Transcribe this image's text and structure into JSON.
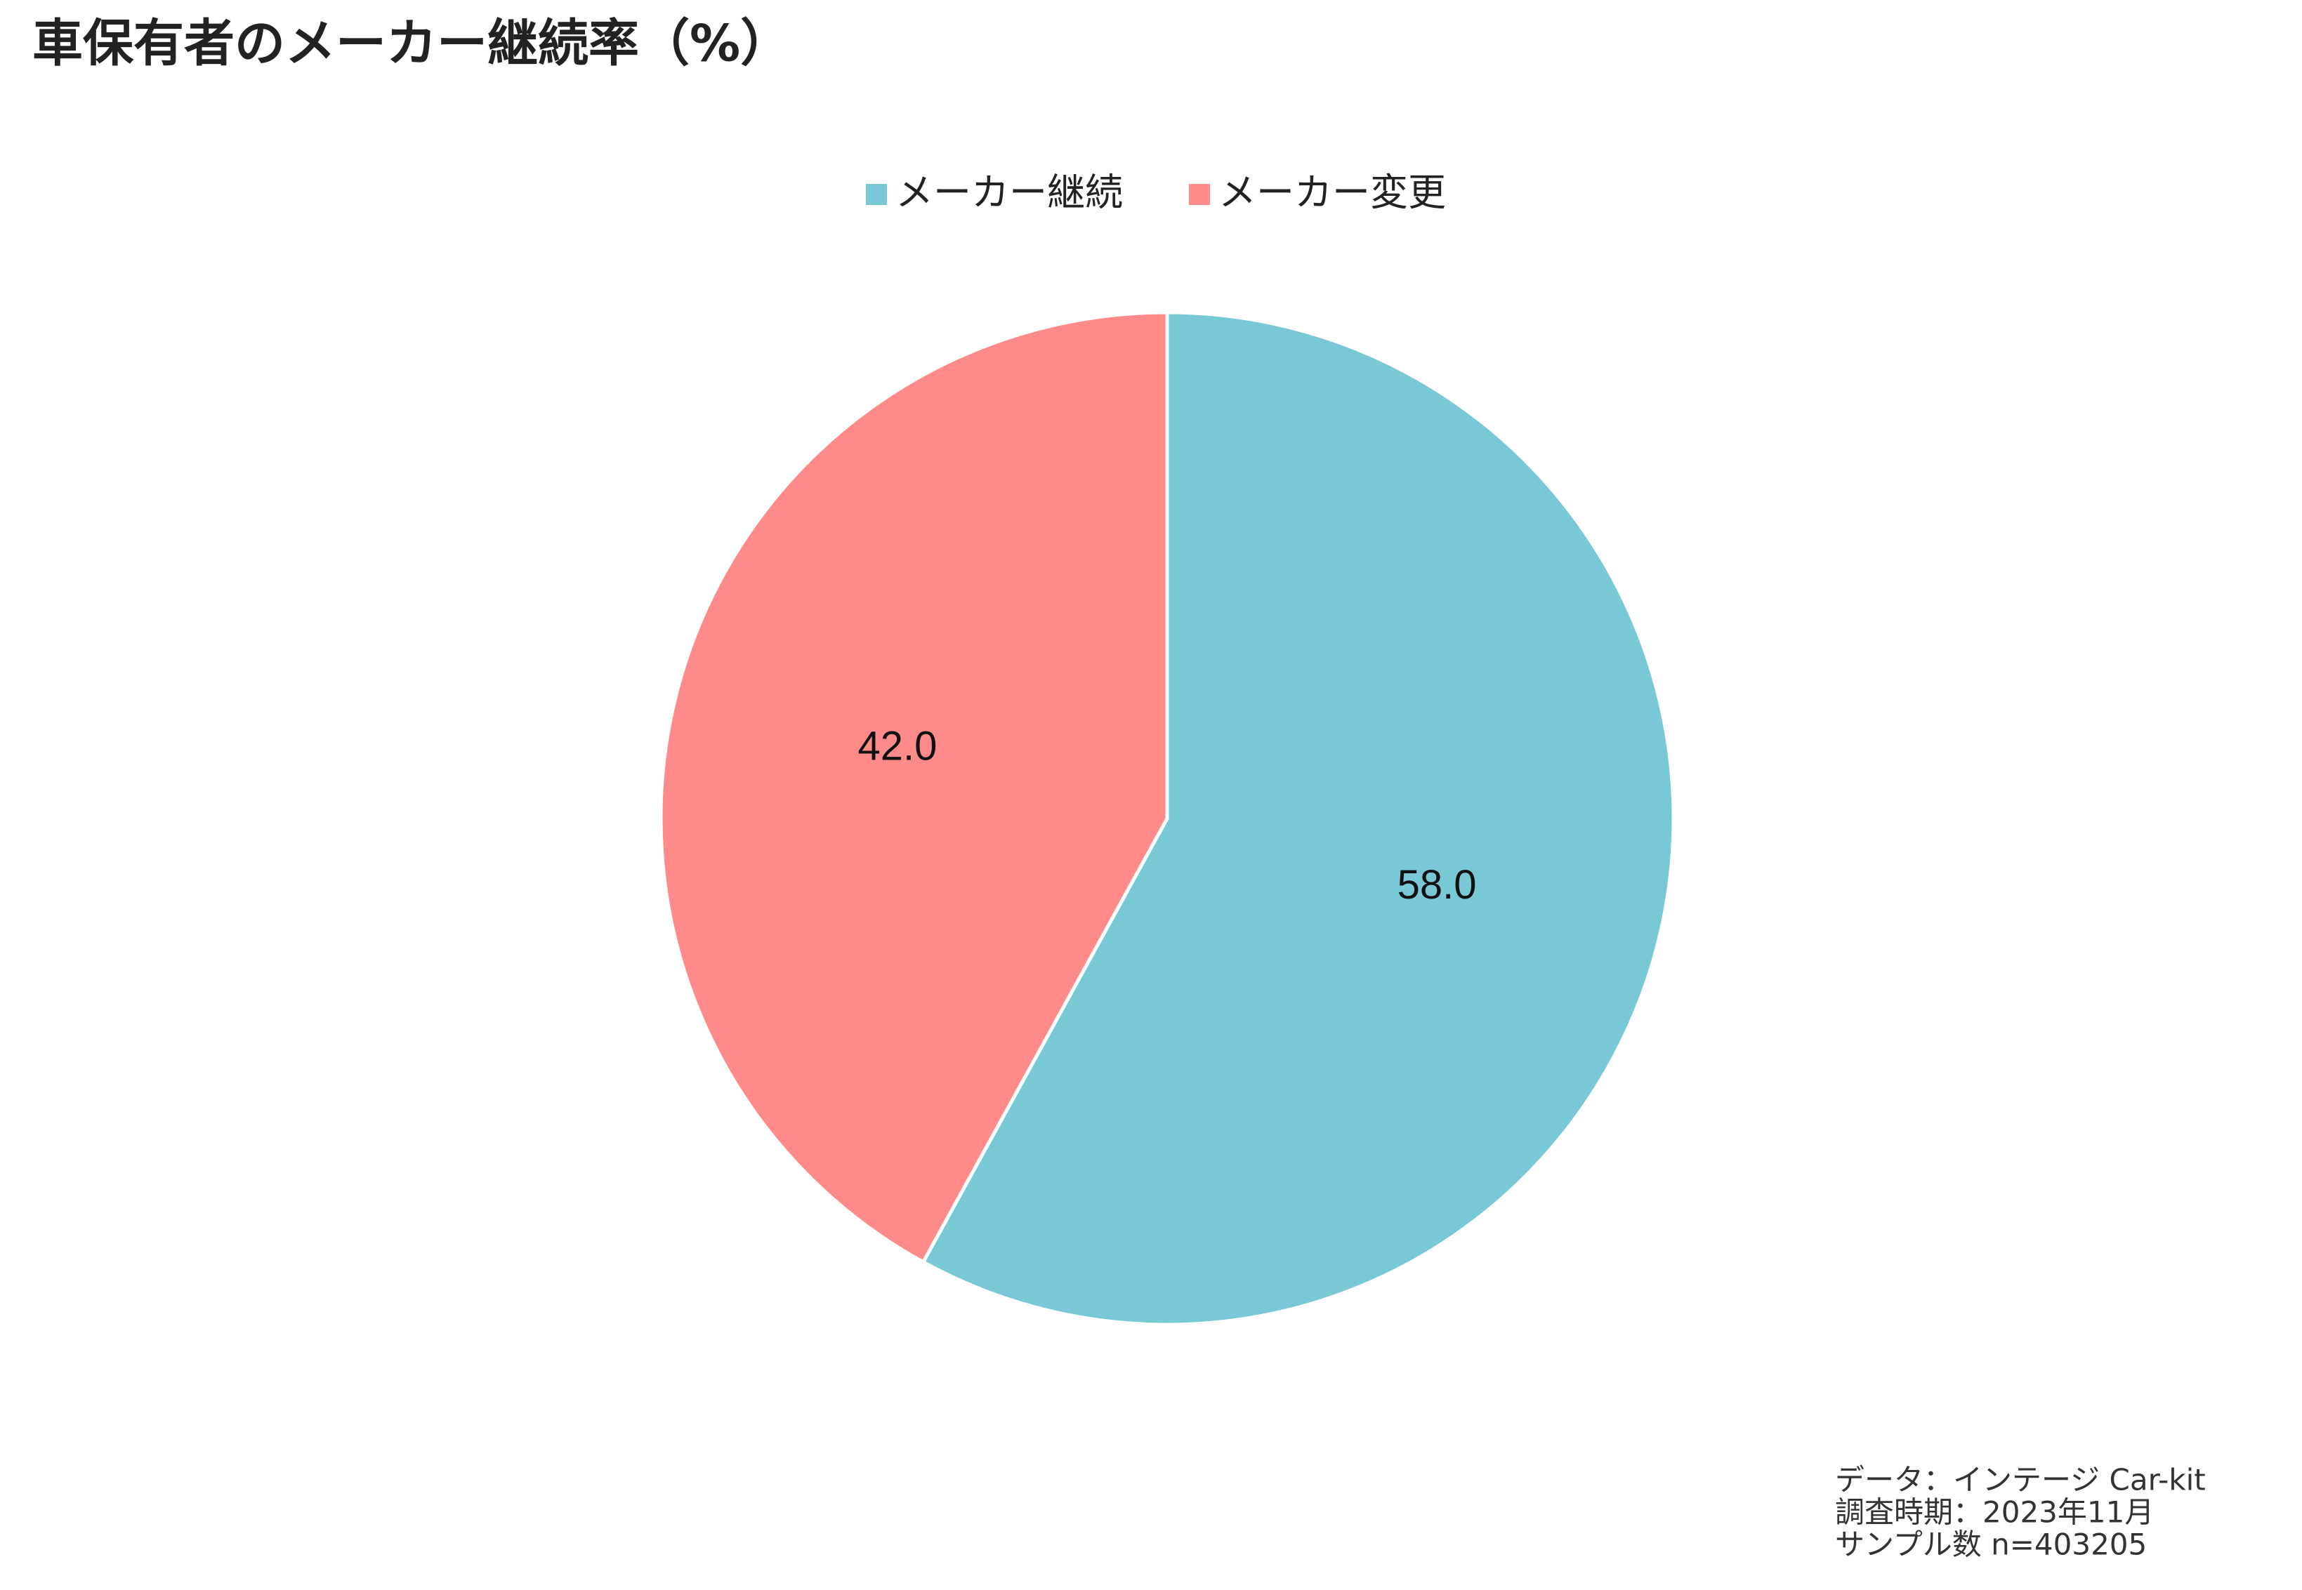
{
  "chart_data": {
    "type": "pie",
    "title": "車保有者のメーカー継続率（%）",
    "categories": [
      "メーカー継続",
      "メーカー変更"
    ],
    "values": [
      58.0,
      42.0
    ],
    "value_labels": [
      "58.0",
      "42.0"
    ],
    "colors": [
      "#79c8d6",
      "#fe8a8a"
    ],
    "legend": "top",
    "notes": [
      "データ：インテージ Car-kit",
      "調査時期：2023年11月",
      "サンプル数  n=403205"
    ]
  }
}
